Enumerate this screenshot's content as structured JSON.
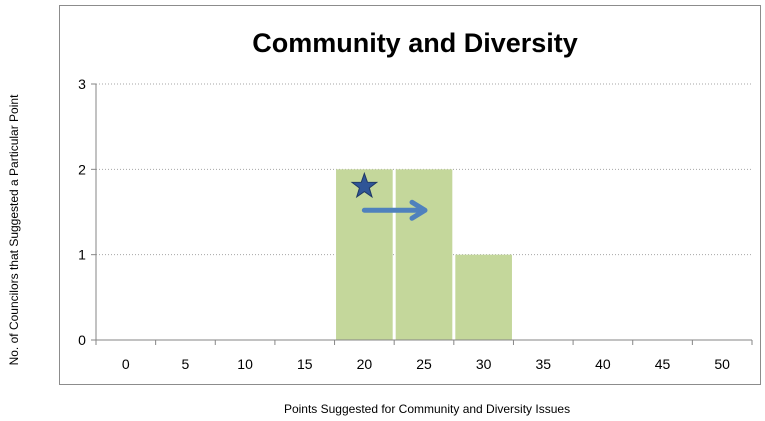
{
  "chart_data": {
    "type": "bar",
    "title": "Community and Diversity",
    "xlabel": "Points Suggested for Community and Diversity Issues",
    "ylabel": "No. of Councilors that Suggested a Particular Point",
    "categories": [
      "0",
      "5",
      "10",
      "15",
      "20",
      "25",
      "30",
      "35",
      "40",
      "45",
      "50"
    ],
    "values": [
      0,
      0,
      0,
      0,
      2,
      2,
      1,
      0,
      0,
      0,
      0
    ],
    "ylim": [
      0,
      3
    ],
    "yticks": [
      "0",
      "1",
      "2",
      "3"
    ],
    "grid": "horizontal dotted",
    "legend": "none",
    "bar_color": "#c4d79b",
    "annotations": [
      {
        "kind": "star",
        "category": "20",
        "value": 1.8,
        "color": "#2f5597"
      },
      {
        "kind": "arrow",
        "from": 20,
        "to": 25,
        "value": 1.52,
        "color": "#4f81bd"
      }
    ]
  }
}
